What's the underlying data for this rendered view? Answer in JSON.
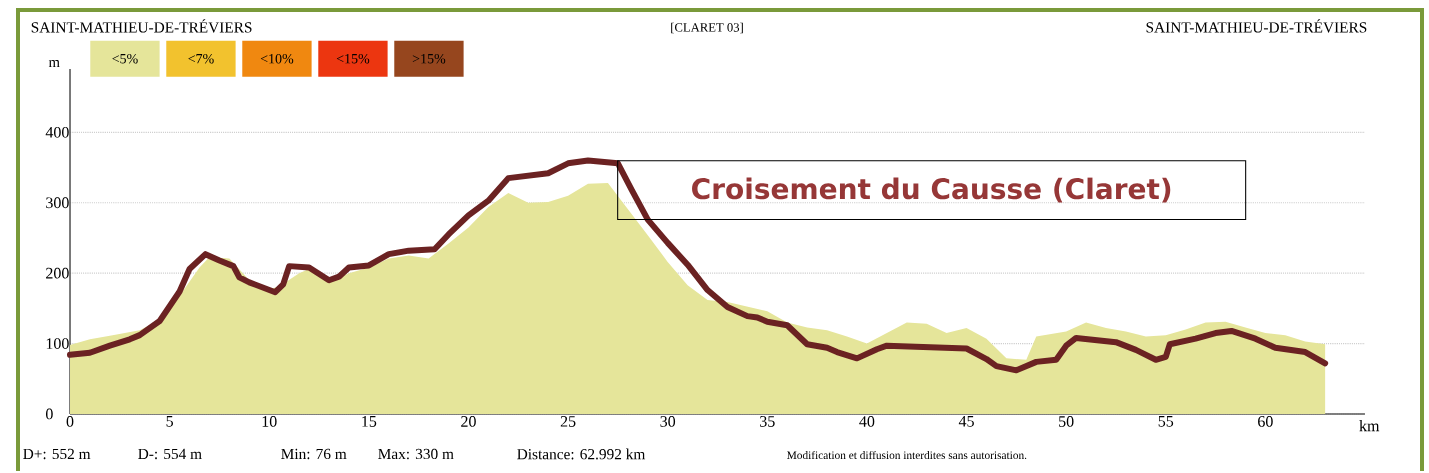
{
  "chart_data": {
    "type": "area",
    "title": "SAINT-MATHIEU-DE-TRÉVIERS",
    "subtitle": "[CLARET 03]",
    "xlabel": "km",
    "ylabel": "m",
    "xlim": [
      0,
      65
    ],
    "ylim": [
      0,
      490
    ],
    "xticks": [
      0,
      5,
      10,
      15,
      20,
      25,
      30,
      35,
      40,
      45,
      50,
      55,
      60
    ],
    "yticks": [
      0,
      100,
      200,
      300,
      400
    ],
    "grid": "y",
    "annotations": [
      "SAINT-MATHIEU-DE-TRÉVIERS",
      "D+: 552 m",
      "D-: 554 m",
      "Min: 76 m",
      "Max: 330 m",
      "Distance: 62.992 km",
      "Modification et diffusion interdites sans autorisation.",
      "Croisement du Causse (Claret)",
      "<7%",
      "<10%",
      "<15%",
      ">15%"
    ],
    "series": [
      {
        "name": "<5%",
        "color": "#e5e59a",
        "x": [
          0,
          1,
          2,
          3.5,
          4.5,
          5.5,
          6.5,
          7,
          8,
          9,
          10,
          10.5,
          11.5,
          12,
          13,
          14,
          15,
          16,
          17,
          18,
          19,
          20,
          21,
          22,
          23,
          24,
          25,
          26,
          27,
          27.8,
          28.5,
          29,
          30,
          31,
          32,
          33,
          35,
          36,
          37,
          38,
          39,
          40,
          42,
          43,
          44,
          45,
          46,
          47,
          48,
          48.5,
          50,
          51,
          52,
          53,
          54,
          55,
          56,
          57,
          58,
          59,
          60,
          61,
          62,
          63
        ],
        "values": [
          98,
          106,
          111,
          119,
          134,
          168,
          208,
          223,
          221,
          190,
          177,
          181,
          200,
          206,
          187,
          200,
          208,
          221,
          225,
          221,
          242,
          265,
          294,
          314,
          300,
          301,
          310,
          327,
          328,
          null,
          null,
          254,
          216,
          183,
          162,
          159,
          146,
          130,
          123,
          119,
          110,
          100,
          130,
          128,
          115,
          122,
          107,
          79,
          77,
          110,
          117,
          130,
          122,
          117,
          110,
          112,
          120,
          130,
          131,
          123,
          115,
          112,
          103,
          99
        ]
      },
      {
        "type": "line",
        "color": "#6b2222",
        "x": [
          0,
          1,
          2,
          3,
          3.5,
          4.5,
          5.5,
          6,
          6.8,
          7.5,
          8.2,
          8.5,
          9,
          10.3,
          10.7,
          11,
          12,
          13,
          13.5,
          14,
          15,
          16,
          17,
          18.3,
          19,
          20,
          21,
          22,
          24,
          25,
          26,
          27.5,
          28.2,
          29,
          30,
          31,
          32,
          33,
          34,
          34.5,
          35,
          36,
          37,
          38,
          38.5,
          39.5,
          40.5,
          41,
          45,
          46,
          46.5,
          47.5,
          48.5,
          49.5,
          50,
          50.5,
          52.5,
          53.5,
          54.5,
          55,
          55.2,
          56.5,
          57.5,
          58.3,
          59.5,
          60.5,
          62,
          63
        ],
        "values": [
          84,
          87,
          97,
          106,
          112,
          132,
          174,
          206,
          227,
          218,
          210,
          194,
          187,
          173,
          184,
          210,
          208,
          190,
          195,
          208,
          211,
          227,
          232,
          234,
          255,
          282,
          303,
          335,
          342,
          356,
          360,
          356,
          318,
          276,
          243,
          212,
          176,
          152,
          139,
          137,
          131,
          126,
          99,
          94,
          88,
          79,
          92,
          97,
          93,
          78,
          68,
          62,
          74,
          77,
          97,
          108,
          102,
          91,
          77,
          81,
          99,
          107,
          115,
          118,
          107,
          94,
          88,
          72
        ]
      }
    ]
  }
}
